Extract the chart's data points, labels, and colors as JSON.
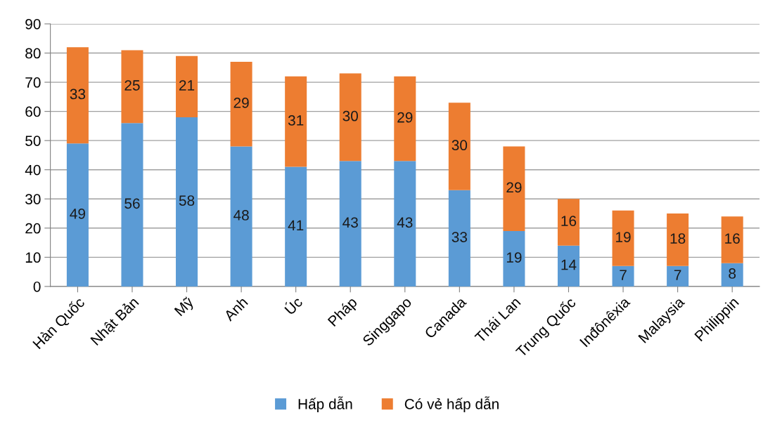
{
  "chart_data": {
    "type": "bar",
    "stacked": true,
    "data_labels": true,
    "grid": "y",
    "legend": "bottom",
    "categories": [
      "Hàn Quốc",
      "Nhật Bản",
      "Mỹ",
      "Anh",
      "Úc",
      "Pháp",
      "Singgapo",
      "Canada",
      "Thái Lan",
      "Trung Quốc",
      "Inđônêxia",
      "Malaysia",
      "Philippin"
    ],
    "series": [
      {
        "name": "Hấp dẫn",
        "color": "#5b9bd5",
        "values": [
          49,
          56,
          58,
          48,
          41,
          43,
          43,
          33,
          19,
          14,
          7,
          7,
          8
        ]
      },
      {
        "name": "Có vẻ hấp dẫn",
        "color": "#ed7d31",
        "values": [
          33,
          25,
          21,
          29,
          31,
          30,
          29,
          30,
          29,
          16,
          19,
          18,
          16
        ]
      }
    ],
    "ylim": [
      0,
      90
    ],
    "yticks": [
      0,
      10,
      20,
      30,
      40,
      50,
      60,
      70,
      80,
      90
    ]
  }
}
